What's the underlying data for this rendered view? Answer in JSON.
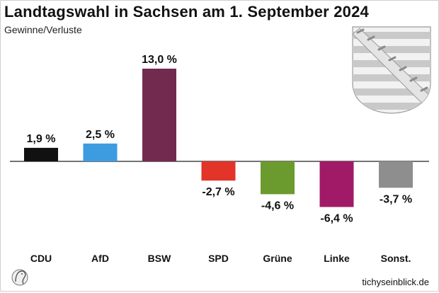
{
  "header": {
    "title": "Landtagswahl in Sachsen am 1. September 2024",
    "subtitle": "Gewinne/Verluste"
  },
  "footer": {
    "source": "tichyseinblick.de"
  },
  "colors": {
    "CDU": "#111111",
    "AfD": "#3d9be0",
    "BSW": "#722a4f",
    "SPD": "#e3342a",
    "Grüne": "#6b9a2f",
    "Linke": "#a11a67",
    "Sonst.": "#8e8e8e"
  },
  "chart_data": {
    "type": "bar",
    "title": "Landtagswahl in Sachsen am 1. September 2024",
    "subtitle": "Gewinne/Verluste",
    "categories": [
      "CDU",
      "AfD",
      "BSW",
      "SPD",
      "Grüne",
      "Linke",
      "Sonst."
    ],
    "values": [
      1.9,
      2.5,
      13.0,
      -2.7,
      -4.6,
      -6.4,
      -3.7
    ],
    "value_labels": [
      "1,9 %",
      "2,5 %",
      "13,0 %",
      "-2,7 %",
      "-4,6 %",
      "-6,4 %",
      "-3,7 %"
    ],
    "xlabel": "",
    "ylabel": "",
    "ylim": [
      -6.4,
      13.0
    ],
    "grid": false,
    "legend": "none"
  }
}
